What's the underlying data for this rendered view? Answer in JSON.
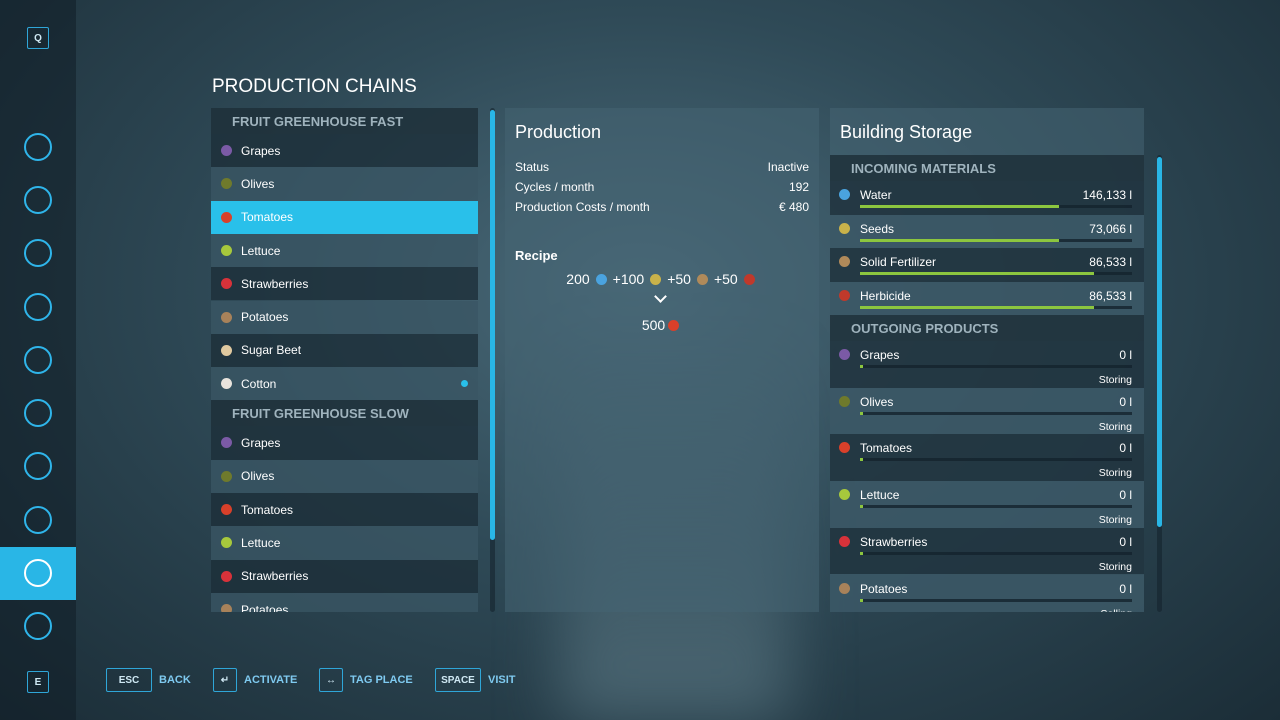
{
  "sidebar": {
    "top_key": "Q",
    "bottom_key": "E"
  },
  "title": "PRODUCTION CHAINS",
  "chains": [
    {
      "name": "FRUIT GREENHOUSE FAST",
      "items": [
        {
          "name": "Grapes",
          "icon": "#7b5aa6"
        },
        {
          "name": "Olives",
          "icon": "#6f7a2c"
        },
        {
          "name": "Tomatoes",
          "icon": "#d9402a"
        },
        {
          "name": "Lettuce",
          "icon": "#a7c83c"
        },
        {
          "name": "Strawberries",
          "icon": "#d8323a"
        },
        {
          "name": "Potatoes",
          "icon": "#a8825a"
        },
        {
          "name": "Sugar Beet",
          "icon": "#e0c9a0"
        },
        {
          "name": "Cotton",
          "icon": "#e8e3dc",
          "dot": true
        }
      ]
    },
    {
      "name": "FRUIT GREENHOUSE SLOW",
      "items": [
        {
          "name": "Grapes",
          "icon": "#7b5aa6"
        },
        {
          "name": "Olives",
          "icon": "#6f7a2c"
        },
        {
          "name": "Tomatoes",
          "icon": "#d9402a"
        },
        {
          "name": "Lettuce",
          "icon": "#a7c83c"
        },
        {
          "name": "Strawberries",
          "icon": "#d8323a"
        },
        {
          "name": "Potatoes",
          "icon": "#a8825a"
        }
      ]
    }
  ],
  "selected": {
    "chain": 0,
    "item": 2
  },
  "production": {
    "title": "Production",
    "stats": [
      {
        "label": "Status",
        "value": "Inactive"
      },
      {
        "label": "Cycles / month",
        "value": "192"
      },
      {
        "label": "Production Costs / month",
        "value": "€ 480"
      }
    ],
    "recipe_label": "Recipe",
    "inputs": [
      {
        "amount": "200",
        "icon": "#4aa3df"
      },
      {
        "amount": "+100",
        "icon": "#c9b24a"
      },
      {
        "amount": "+50",
        "icon": "#b08a5a"
      },
      {
        "amount": "+50",
        "icon": "#c0392b"
      }
    ],
    "output": {
      "amount": "500",
      "icon": "#d9402a"
    }
  },
  "storage": {
    "title": "Building Storage",
    "incoming_label": "INCOMING MATERIALS",
    "incoming": [
      {
        "name": "Water",
        "amount": "146,133 l",
        "fill": 73,
        "icon": "#4aa3df"
      },
      {
        "name": "Seeds",
        "amount": "73,066 l",
        "fill": 73,
        "icon": "#c9b24a"
      },
      {
        "name": "Solid Fertilizer",
        "amount": "86,533 l",
        "fill": 86,
        "icon": "#b08a5a"
      },
      {
        "name": "Herbicide",
        "amount": "86,533 l",
        "fill": 86,
        "icon": "#c0392b"
      }
    ],
    "outgoing_label": "OUTGOING PRODUCTS",
    "outgoing": [
      {
        "name": "Grapes",
        "amount": "0 l",
        "fill": 0,
        "mode": "Storing",
        "icon": "#7b5aa6"
      },
      {
        "name": "Olives",
        "amount": "0 l",
        "fill": 0,
        "mode": "Storing",
        "icon": "#6f7a2c"
      },
      {
        "name": "Tomatoes",
        "amount": "0 l",
        "fill": 0,
        "mode": "Storing",
        "icon": "#d9402a"
      },
      {
        "name": "Lettuce",
        "amount": "0 l",
        "fill": 0,
        "mode": "Storing",
        "icon": "#a7c83c"
      },
      {
        "name": "Strawberries",
        "amount": "0 l",
        "fill": 0,
        "mode": "Storing",
        "icon": "#d8323a"
      },
      {
        "name": "Potatoes",
        "amount": "0 l",
        "fill": 0,
        "mode": "Selling",
        "icon": "#a8825a"
      }
    ]
  },
  "footer": [
    {
      "key": "ESC",
      "action": "BACK"
    },
    {
      "key": "↵",
      "action": "ACTIVATE"
    },
    {
      "key": "↔",
      "action": "TAG PLACE"
    },
    {
      "key": "SPACE",
      "action": "VISIT"
    }
  ]
}
